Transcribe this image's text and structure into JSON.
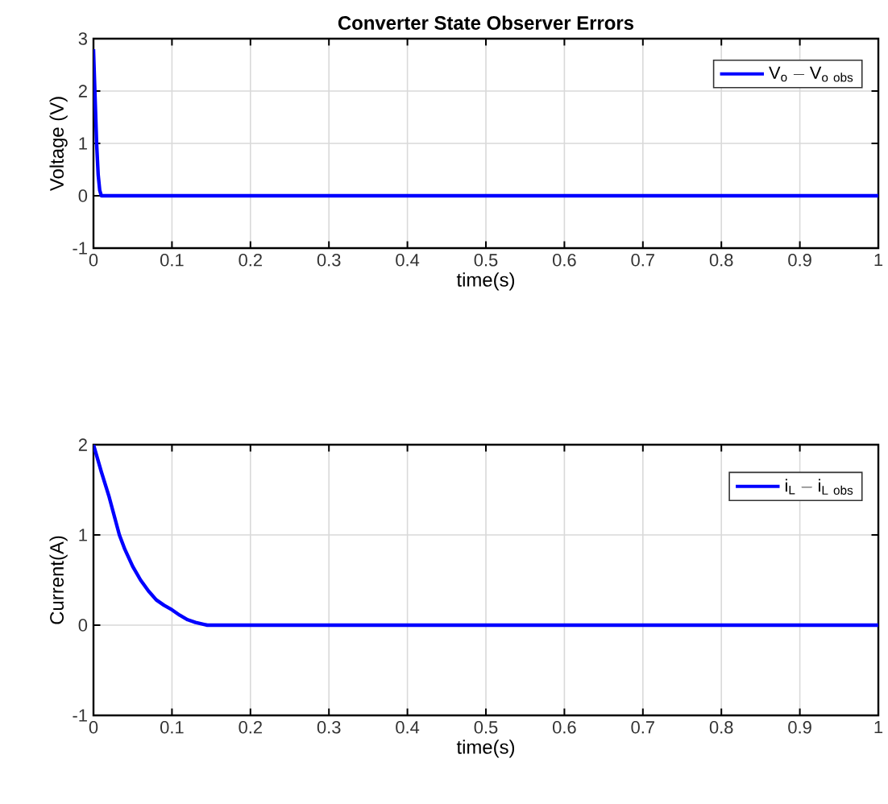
{
  "chart_data": [
    {
      "type": "line",
      "title": "Converter State Observer Errors",
      "xlabel": "time(s)",
      "ylabel": "Voltage (V)",
      "x": [
        0,
        0.002,
        0.004,
        0.006,
        0.008,
        0.01,
        0.5,
        1
      ],
      "series": [
        {
          "name": "\\mathrm{V_o - V_{o\\ obs}}",
          "color": "#0000ff",
          "values": [
            2.8,
            1.9,
            1.0,
            0.4,
            0.1,
            0,
            0,
            0
          ]
        }
      ],
      "xlim": [
        0,
        1
      ],
      "ylim": [
        -1,
        3
      ],
      "xticks": [
        0,
        0.1,
        0.2,
        0.3,
        0.4,
        0.5,
        0.6,
        0.7,
        0.8,
        0.9,
        1
      ],
      "yticks": [
        -1,
        0,
        1,
        2,
        3
      ],
      "grid": true,
      "legend": "top right",
      "marker": "none",
      "line_style": "solid"
    },
    {
      "type": "line",
      "xlabel": "time(s)",
      "ylabel": "Current(A)",
      "x": [
        0,
        0.01,
        0.02,
        0.033,
        0.04,
        0.05,
        0.06,
        0.07,
        0.08,
        0.09,
        0.1,
        0.11,
        0.12,
        0.13,
        0.145,
        0.2,
        0.5,
        1
      ],
      "series": [
        {
          "name": "\\mathrm{i_L - i_{L\\ obs}}",
          "color": "#0000ff",
          "values": [
            2,
            1.7,
            1.42,
            1.0,
            0.84,
            0.65,
            0.5,
            0.38,
            0.28,
            0.22,
            0.17,
            0.11,
            0.06,
            0.03,
            0,
            0,
            0,
            0
          ]
        }
      ],
      "xlim": [
        0,
        1
      ],
      "ylim": [
        -1,
        2
      ],
      "xticks": [
        0,
        0.1,
        0.2,
        0.3,
        0.4,
        0.5,
        0.6,
        0.7,
        0.8,
        0.9,
        1
      ],
      "yticks": [
        -1,
        0,
        1,
        2
      ],
      "grid": true,
      "legend": "top right",
      "marker": "none",
      "line_style": "solid"
    }
  ]
}
